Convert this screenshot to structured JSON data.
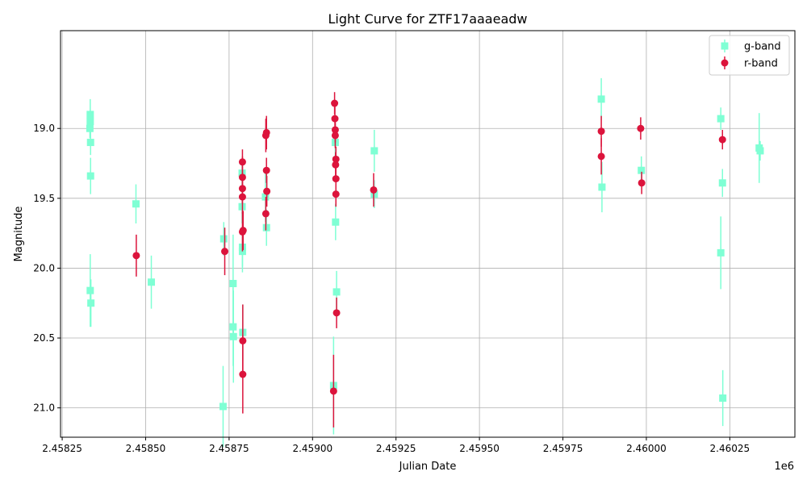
{
  "chart_data": {
    "type": "scatter",
    "title": "Light Curve for ZTF17aaaeadw",
    "xlabel": "Julian Date",
    "ylabel": "Magnitude",
    "x_offset_label": "1e6",
    "xlim": [
      2458245,
      2460445
    ],
    "ylim": [
      21.21,
      18.3
    ],
    "y_inverted": true,
    "grid": true,
    "legend_position": "upper right",
    "x_ticks": [
      {
        "value": 2458250,
        "label": "2.45825"
      },
      {
        "value": 2458500,
        "label": "2.45850"
      },
      {
        "value": 2458750,
        "label": "2.45875"
      },
      {
        "value": 2459000,
        "label": "2.45900"
      },
      {
        "value": 2459250,
        "label": "2.45925"
      },
      {
        "value": 2459500,
        "label": "2.45950"
      },
      {
        "value": 2459750,
        "label": "2.45975"
      },
      {
        "value": 2460000,
        "label": "2.46000"
      },
      {
        "value": 2460250,
        "label": "2.46025"
      }
    ],
    "y_ticks": [
      {
        "value": 19.0,
        "label": "19.0"
      },
      {
        "value": 19.5,
        "label": "19.5"
      },
      {
        "value": 20.0,
        "label": "20.0"
      },
      {
        "value": 20.5,
        "label": "20.5"
      },
      {
        "value": 21.0,
        "label": "21.0"
      }
    ],
    "series": [
      {
        "name": "g-band",
        "color": "#7fffd4",
        "marker": "square",
        "points": [
          {
            "x": 2458334,
            "y": 18.9,
            "err": 0.11
          },
          {
            "x": 2458334,
            "y": 18.95,
            "err": 0.08
          },
          {
            "x": 2458333,
            "y": 19.0,
            "err": 0.07
          },
          {
            "x": 2458335,
            "y": 19.1,
            "err": 0.09
          },
          {
            "x": 2458335,
            "y": 19.34,
            "err": 0.13
          },
          {
            "x": 2458334,
            "y": 20.16,
            "err": 0.26
          },
          {
            "x": 2458336,
            "y": 20.25,
            "err": 0.17
          },
          {
            "x": 2458471,
            "y": 19.54,
            "err": 0.14
          },
          {
            "x": 2458517,
            "y": 20.1,
            "err": 0.19
          },
          {
            "x": 2458732,
            "y": 20.99,
            "err": 0.29
          },
          {
            "x": 2458734,
            "y": 19.79,
            "err": 0.12
          },
          {
            "x": 2458762,
            "y": 20.11,
            "err": 0.35
          },
          {
            "x": 2458762,
            "y": 20.42,
            "err": 0.28
          },
          {
            "x": 2458763,
            "y": 20.49,
            "err": 0.33
          },
          {
            "x": 2458789,
            "y": 19.32,
            "err": 0.1
          },
          {
            "x": 2458789,
            "y": 19.56,
            "err": 0.12
          },
          {
            "x": 2458790,
            "y": 19.85,
            "err": 0.14
          },
          {
            "x": 2458790,
            "y": 19.88,
            "err": 0.15
          },
          {
            "x": 2458791,
            "y": 20.46,
            "err": 0.2
          },
          {
            "x": 2458859,
            "y": 19.49,
            "err": 0.18
          },
          {
            "x": 2458862,
            "y": 19.71,
            "err": 0.13
          },
          {
            "x": 2459063,
            "y": 20.84,
            "err": 0.35
          },
          {
            "x": 2459068,
            "y": 19.1,
            "err": 0.13
          },
          {
            "x": 2459069,
            "y": 19.67,
            "err": 0.13
          },
          {
            "x": 2459072,
            "y": 20.17,
            "err": 0.15
          },
          {
            "x": 2459185,
            "y": 19.16,
            "err": 0.15
          },
          {
            "x": 2459185,
            "y": 19.47,
            "err": 0.1
          },
          {
            "x": 2459865,
            "y": 18.79,
            "err": 0.15
          },
          {
            "x": 2459867,
            "y": 19.42,
            "err": 0.18
          },
          {
            "x": 2459985,
            "y": 19.3,
            "err": 0.1
          },
          {
            "x": 2460223,
            "y": 18.93,
            "err": 0.08
          },
          {
            "x": 2460223,
            "y": 19.89,
            "err": 0.26
          },
          {
            "x": 2460228,
            "y": 19.39,
            "err": 0.1
          },
          {
            "x": 2460229,
            "y": 20.93,
            "err": 0.2
          },
          {
            "x": 2460338,
            "y": 19.14,
            "err": 0.25
          },
          {
            "x": 2460341,
            "y": 19.16,
            "err": 0.07
          }
        ]
      },
      {
        "name": "r-band",
        "color": "#dc143c",
        "marker": "circle",
        "points": [
          {
            "x": 2458472,
            "y": 19.91,
            "err": 0.15
          },
          {
            "x": 2458737,
            "y": 19.88,
            "err": 0.17
          },
          {
            "x": 2458790,
            "y": 19.24,
            "err": 0.09
          },
          {
            "x": 2458790,
            "y": 19.35,
            "err": 0.15
          },
          {
            "x": 2458790,
            "y": 19.43,
            "err": 0.11
          },
          {
            "x": 2458790,
            "y": 19.49,
            "err": 0.12
          },
          {
            "x": 2458790,
            "y": 19.74,
            "err": 0.14
          },
          {
            "x": 2458792,
            "y": 19.73,
            "err": 0.14
          },
          {
            "x": 2458791,
            "y": 20.52,
            "err": 0.26
          },
          {
            "x": 2458791,
            "y": 20.76,
            "err": 0.28
          },
          {
            "x": 2458860,
            "y": 19.05,
            "err": 0.12
          },
          {
            "x": 2458862,
            "y": 19.03,
            "err": 0.12
          },
          {
            "x": 2458862,
            "y": 19.3,
            "err": 0.09
          },
          {
            "x": 2458863,
            "y": 19.45,
            "err": 0.11
          },
          {
            "x": 2458860,
            "y": 19.61,
            "err": 0.12
          },
          {
            "x": 2459063,
            "y": 20.88,
            "err": 0.26
          },
          {
            "x": 2459066,
            "y": 18.82,
            "err": 0.08
          },
          {
            "x": 2459067,
            "y": 18.93,
            "err": 0.09
          },
          {
            "x": 2459068,
            "y": 19.01,
            "err": 0.09
          },
          {
            "x": 2459068,
            "y": 19.05,
            "err": 0.09
          },
          {
            "x": 2459070,
            "y": 19.22,
            "err": 0.09
          },
          {
            "x": 2459069,
            "y": 19.26,
            "err": 0.09
          },
          {
            "x": 2459070,
            "y": 19.36,
            "err": 0.09
          },
          {
            "x": 2459070,
            "y": 19.47,
            "err": 0.09
          },
          {
            "x": 2459072,
            "y": 20.32,
            "err": 0.11
          },
          {
            "x": 2459183,
            "y": 19.44,
            "err": 0.12
          },
          {
            "x": 2459865,
            "y": 19.02,
            "err": 0.11
          },
          {
            "x": 2459865,
            "y": 19.2,
            "err": 0.13
          },
          {
            "x": 2459983,
            "y": 19.0,
            "err": 0.08
          },
          {
            "x": 2459986,
            "y": 19.39,
            "err": 0.08
          },
          {
            "x": 2460228,
            "y": 19.08,
            "err": 0.07
          }
        ]
      }
    ]
  }
}
